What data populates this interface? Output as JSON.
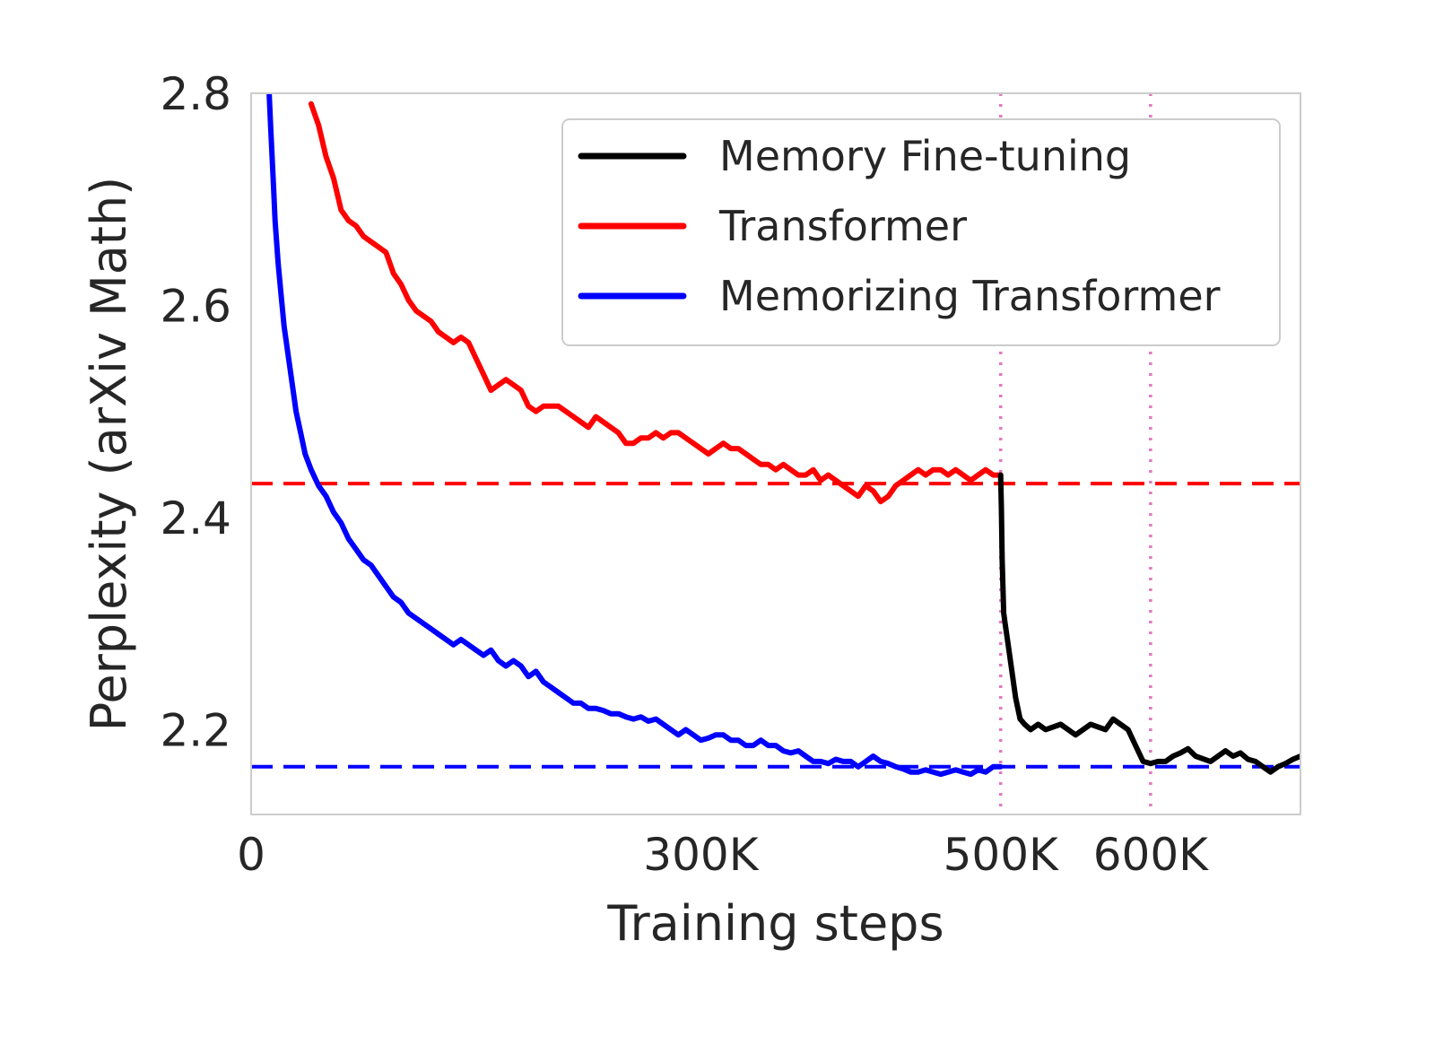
{
  "chart_data": {
    "type": "line",
    "xlabel": "Training steps",
    "ylabel": "Perplexity (arXiv Math)",
    "xlim": [
      0,
      700000
    ],
    "ylim": [
      2.12,
      2.8
    ],
    "xticks": [
      {
        "value": 0,
        "label": "0"
      },
      {
        "value": 300000,
        "label": "300K"
      },
      {
        "value": 500000,
        "label": "500K"
      },
      {
        "value": 600000,
        "label": "600K"
      }
    ],
    "yticks": [
      {
        "value": 2.2,
        "label": "2.2"
      },
      {
        "value": 2.4,
        "label": "2.4"
      },
      {
        "value": 2.6,
        "label": "2.6"
      },
      {
        "value": 2.8,
        "label": "2.8"
      }
    ],
    "grid": false,
    "legend_position": "top-right",
    "series": [
      {
        "name": "Memory Fine-tuning",
        "color": "#000000",
        "x": [
          500000,
          500500,
          501000,
          502000,
          503000,
          505000,
          508000,
          510000,
          513000,
          516000,
          520000,
          525000,
          530000,
          540000,
          550000,
          560000,
          570000,
          575000,
          580000,
          585000,
          590000,
          595000,
          600000,
          605000,
          610000,
          615000,
          620000,
          625000,
          630000,
          640000,
          650000,
          655000,
          660000,
          665000,
          670000,
          675000,
          680000,
          685000,
          690000,
          695000,
          700000
        ],
        "y": [
          2.44,
          2.41,
          2.36,
          2.31,
          2.3,
          2.28,
          2.25,
          2.23,
          2.21,
          2.205,
          2.2,
          2.205,
          2.2,
          2.205,
          2.195,
          2.205,
          2.2,
          2.21,
          2.205,
          2.2,
          2.185,
          2.17,
          2.168,
          2.17,
          2.17,
          2.175,
          2.178,
          2.182,
          2.175,
          2.17,
          2.18,
          2.175,
          2.178,
          2.172,
          2.17,
          2.165,
          2.16,
          2.165,
          2.168,
          2.172,
          2.175
        ]
      },
      {
        "name": "Transformer",
        "color": "#ff0000",
        "x": [
          40000,
          45000,
          50000,
          55000,
          60000,
          65000,
          70000,
          75000,
          80000,
          85000,
          90000,
          95000,
          100000,
          105000,
          110000,
          115000,
          120000,
          125000,
          130000,
          135000,
          140000,
          145000,
          150000,
          155000,
          160000,
          165000,
          170000,
          175000,
          180000,
          185000,
          190000,
          195000,
          200000,
          205000,
          210000,
          215000,
          220000,
          225000,
          230000,
          235000,
          240000,
          245000,
          250000,
          255000,
          260000,
          265000,
          270000,
          275000,
          280000,
          285000,
          290000,
          295000,
          300000,
          305000,
          310000,
          315000,
          320000,
          325000,
          330000,
          335000,
          340000,
          345000,
          350000,
          355000,
          360000,
          365000,
          370000,
          375000,
          380000,
          385000,
          390000,
          395000,
          400000,
          405000,
          410000,
          415000,
          420000,
          425000,
          430000,
          435000,
          440000,
          445000,
          450000,
          455000,
          460000,
          465000,
          470000,
          475000,
          480000,
          485000,
          490000,
          495000,
          500000
        ],
        "y": [
          2.79,
          2.77,
          2.74,
          2.72,
          2.69,
          2.68,
          2.675,
          2.665,
          2.66,
          2.655,
          2.65,
          2.63,
          2.62,
          2.605,
          2.595,
          2.59,
          2.585,
          2.575,
          2.57,
          2.565,
          2.57,
          2.565,
          2.55,
          2.535,
          2.52,
          2.525,
          2.53,
          2.525,
          2.52,
          2.505,
          2.5,
          2.505,
          2.505,
          2.505,
          2.5,
          2.495,
          2.49,
          2.485,
          2.495,
          2.49,
          2.485,
          2.48,
          2.47,
          2.47,
          2.475,
          2.475,
          2.48,
          2.475,
          2.48,
          2.48,
          2.475,
          2.47,
          2.465,
          2.46,
          2.465,
          2.47,
          2.465,
          2.465,
          2.46,
          2.455,
          2.45,
          2.45,
          2.445,
          2.45,
          2.445,
          2.44,
          2.44,
          2.445,
          2.435,
          2.44,
          2.435,
          2.43,
          2.425,
          2.42,
          2.43,
          2.425,
          2.415,
          2.42,
          2.43,
          2.435,
          2.44,
          2.445,
          2.44,
          2.445,
          2.445,
          2.44,
          2.445,
          2.44,
          2.435,
          2.44,
          2.445,
          2.44,
          2.44
        ]
      },
      {
        "name": "Memorizing Transformer",
        "color": "#0000ff",
        "x": [
          12000,
          13000,
          14000,
          15000,
          16000,
          17000,
          18000,
          20000,
          22000,
          25000,
          28000,
          30000,
          33000,
          36000,
          40000,
          45000,
          50000,
          55000,
          60000,
          65000,
          70000,
          75000,
          80000,
          85000,
          90000,
          95000,
          100000,
          105000,
          110000,
          115000,
          120000,
          125000,
          130000,
          135000,
          140000,
          145000,
          150000,
          155000,
          160000,
          165000,
          170000,
          175000,
          180000,
          185000,
          190000,
          195000,
          200000,
          205000,
          210000,
          215000,
          220000,
          225000,
          230000,
          235000,
          240000,
          245000,
          250000,
          255000,
          260000,
          265000,
          270000,
          275000,
          280000,
          285000,
          290000,
          295000,
          300000,
          305000,
          310000,
          315000,
          320000,
          325000,
          330000,
          335000,
          340000,
          345000,
          350000,
          355000,
          360000,
          365000,
          370000,
          375000,
          380000,
          385000,
          390000,
          395000,
          400000,
          405000,
          410000,
          415000,
          420000,
          425000,
          430000,
          435000,
          440000,
          445000,
          450000,
          455000,
          460000,
          465000,
          470000,
          475000,
          480000,
          485000,
          490000,
          495000,
          500000
        ],
        "y": [
          2.8,
          2.77,
          2.74,
          2.71,
          2.68,
          2.66,
          2.64,
          2.61,
          2.58,
          2.55,
          2.52,
          2.5,
          2.48,
          2.46,
          2.445,
          2.43,
          2.42,
          2.405,
          2.395,
          2.38,
          2.37,
          2.36,
          2.355,
          2.345,
          2.335,
          2.325,
          2.32,
          2.31,
          2.305,
          2.3,
          2.295,
          2.29,
          2.285,
          2.28,
          2.285,
          2.28,
          2.275,
          2.27,
          2.275,
          2.265,
          2.26,
          2.265,
          2.26,
          2.25,
          2.255,
          2.245,
          2.24,
          2.235,
          2.23,
          2.225,
          2.225,
          2.22,
          2.22,
          2.218,
          2.215,
          2.215,
          2.212,
          2.21,
          2.212,
          2.208,
          2.21,
          2.205,
          2.2,
          2.195,
          2.2,
          2.195,
          2.19,
          2.192,
          2.195,
          2.195,
          2.19,
          2.19,
          2.185,
          2.185,
          2.19,
          2.185,
          2.185,
          2.18,
          2.178,
          2.18,
          2.175,
          2.17,
          2.17,
          2.168,
          2.172,
          2.17,
          2.17,
          2.165,
          2.17,
          2.175,
          2.17,
          2.168,
          2.165,
          2.163,
          2.16,
          2.16,
          2.162,
          2.16,
          2.158,
          2.16,
          2.162,
          2.16,
          2.158,
          2.162,
          2.16,
          2.165,
          2.165
        ]
      }
    ],
    "reference_lines": [
      {
        "orientation": "horizontal",
        "value": 2.432,
        "color": "#ff0000",
        "style": "dashed"
      },
      {
        "orientation": "horizontal",
        "value": 2.165,
        "color": "#0000ff",
        "style": "dashed"
      },
      {
        "orientation": "vertical",
        "value": 500000,
        "color": "#e377c2",
        "style": "dotted"
      },
      {
        "orientation": "vertical",
        "value": 600000,
        "color": "#e377c2",
        "style": "dotted"
      }
    ]
  }
}
